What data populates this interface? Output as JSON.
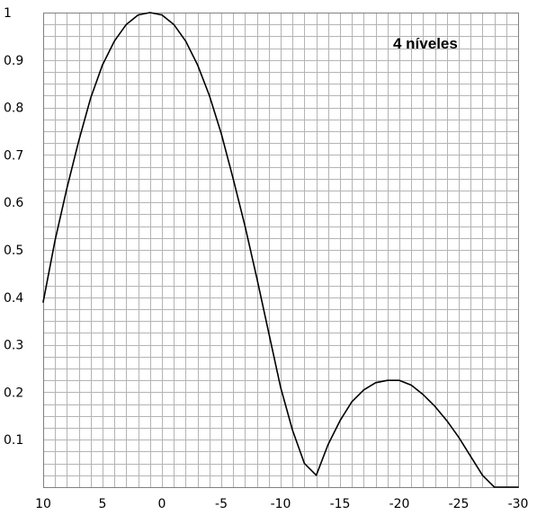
{
  "chart_data": {
    "type": "line",
    "title": "",
    "xlabel": "",
    "ylabel": "",
    "annotation": "4 níveles",
    "x_reversed": true,
    "xlim": [
      10,
      -30
    ],
    "ylim": [
      0,
      1
    ],
    "x_ticks": [
      10,
      5,
      0,
      -5,
      -10,
      -15,
      -20,
      -25,
      -30
    ],
    "x_tick_labels": [
      "10",
      "5",
      "0",
      "-5",
      "-10",
      "-15",
      "-20",
      "-25",
      "-30"
    ],
    "y_ticks": [
      0.1,
      0.2,
      0.3,
      0.4,
      0.5,
      0.6,
      0.7,
      0.8,
      0.9,
      1
    ],
    "y_tick_labels": [
      "0.1",
      "0.2",
      "0.3",
      "0.4",
      "0.5",
      "0.6",
      "0.7",
      "0.8",
      "0.9",
      "1"
    ],
    "grid": true,
    "grid_minor_per_major_x": 5,
    "grid_minor_per_major_y": 4,
    "colors": {
      "grid": "#b4b4b4",
      "line": "#000000",
      "axis": "#808080"
    },
    "series": [
      {
        "x": [
          10,
          9,
          8,
          7,
          6,
          5,
          4,
          3,
          2,
          1,
          0,
          -1,
          -2,
          -3,
          -4,
          -5,
          -6,
          -7,
          -8,
          -9,
          -10,
          -11,
          -12,
          -13,
          -14,
          -15,
          -16,
          -17,
          -18,
          -19,
          -20,
          -21,
          -22,
          -23,
          -24,
          -25,
          -26,
          -27,
          -28,
          -29,
          -30
        ],
        "y": [
          0.39,
          0.52,
          0.63,
          0.73,
          0.82,
          0.89,
          0.94,
          0.975,
          0.995,
          1.0,
          0.995,
          0.975,
          0.94,
          0.89,
          0.825,
          0.745,
          0.65,
          0.55,
          0.44,
          0.325,
          0.21,
          0.12,
          0.05,
          0.025,
          0.09,
          0.14,
          0.18,
          0.205,
          0.22,
          0.225,
          0.225,
          0.215,
          0.195,
          0.17,
          0.14,
          0.105,
          0.065,
          0.025,
          0.0,
          0.0,
          0.0
        ]
      }
    ]
  }
}
